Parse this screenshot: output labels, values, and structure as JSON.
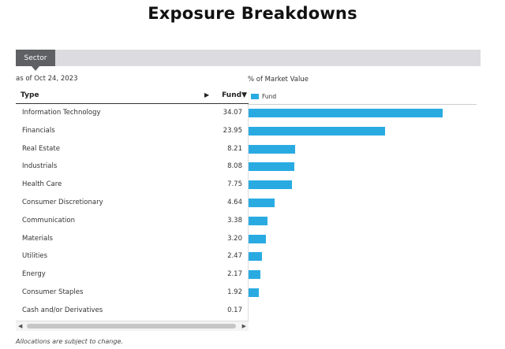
{
  "title": "Exposure Breakdowns",
  "tabs": [
    {
      "label": "Sector",
      "active": true
    }
  ],
  "as_of": "as of Oct 24, 2023",
  "table": {
    "col_type": "Type",
    "col_sort_icon": "▶",
    "col_fund": "Fund▼"
  },
  "chart_header": {
    "label": "% of Market Value",
    "legend_label": "Fund",
    "bar_color": "#29ABE2"
  },
  "chart_data": {
    "type": "bar",
    "categories": [
      "Information Technology",
      "Financials",
      "Real Estate",
      "Industrials",
      "Health Care",
      "Consumer Discretionary",
      "Communication",
      "Materials",
      "Utilities",
      "Energy",
      "Consumer Staples",
      "Cash and/or Derivatives"
    ],
    "values": [
      34.07,
      23.95,
      8.21,
      8.08,
      7.75,
      4.64,
      3.38,
      3.2,
      2.47,
      2.17,
      1.92,
      0.17
    ],
    "value_labels": [
      "34.07",
      "23.95",
      "8.21",
      "8.08",
      "7.75",
      "4.64",
      "3.38",
      "3.20",
      "2.47",
      "2.17",
      "1.92",
      "0.17"
    ],
    "series": [
      {
        "name": "Fund"
      }
    ],
    "orientation": "horizontal",
    "grid": false
  },
  "scrollbar": {
    "left_icon": "◀",
    "right_icon": "▶"
  },
  "footnote": "Allocations are subject to change."
}
